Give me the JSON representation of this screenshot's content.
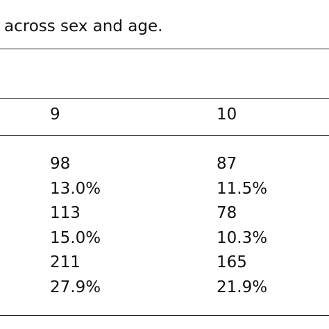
{
  "caption": "across sex and age.",
  "table": {
    "header": [
      "9",
      "10"
    ],
    "rows": [
      [
        "98",
        "87"
      ],
      [
        "13.0%",
        "11.5%"
      ],
      [
        "113",
        "78"
      ],
      [
        "15.0%",
        "10.3%"
      ],
      [
        "211",
        "165"
      ],
      [
        "27.9%",
        "21.9%"
      ]
    ]
  }
}
